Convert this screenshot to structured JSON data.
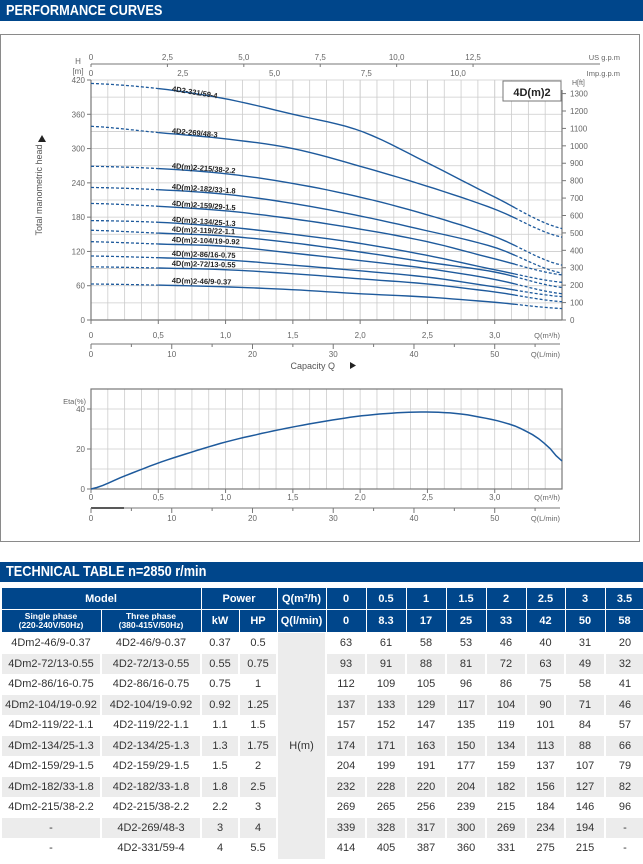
{
  "header": {
    "performance_title": "PERFORMANCE CURVES",
    "technical_title": "TECHNICAL TABLE n=2850 r/min"
  },
  "colors": {
    "brand": "#00468b",
    "curve": "#1e5a9c",
    "grid": "#cccccc"
  },
  "chart_data": [
    {
      "type": "line",
      "title": "4D(m)2",
      "xlabel": "Capacity Q",
      "ylabel": "Total manometric head",
      "y_unit_label": "H\n[m]",
      "y_unit_top": "H",
      "y_unit_bottom": "[m]",
      "y_right_label": "H[ft]",
      "xlim": [
        0,
        3.5
      ],
      "ylim": [
        0,
        420
      ],
      "grid": true,
      "x_axis_label_m3h": "Q(m³/h)",
      "x_axis_label_lmin": "Q(L/min)",
      "us_gpm_label": "US g.p.m",
      "imp_gpm_label": "Imp.g.p.m",
      "x_ticks_m3h": [
        "0",
        "0,5",
        "1,0",
        "1,5",
        "2,0",
        "2,5",
        "3,0"
      ],
      "x_ticks_lmin": [
        "0",
        "10",
        "20",
        "30",
        "40",
        "50"
      ],
      "us_gpm_ticks": [
        "0",
        "2,5",
        "5,0",
        "7,5",
        "10,0",
        "12,5"
      ],
      "imp_gpm_ticks": [
        "0",
        "2,5",
        "5,0",
        "7,5",
        "10,0"
      ],
      "y_ticks": [
        "0",
        "60",
        "120",
        "180",
        "240",
        "300",
        "360",
        "420"
      ],
      "y_right_ticks": [
        "0",
        "100",
        "200",
        "300",
        "400",
        "500",
        "600",
        "700",
        "800",
        "900",
        "1000",
        "1100",
        "1200",
        "1300"
      ],
      "x": [
        0,
        0.5,
        1,
        1.5,
        2,
        2.5,
        3,
        3.5
      ],
      "solid_range": [
        0.5,
        3.15
      ],
      "series": [
        {
          "name": "4D2-331/59-4",
          "values": [
            414,
            405,
            387,
            360,
            331,
            275,
            215,
            160
          ]
        },
        {
          "name": "4D2-269/48-3",
          "values": [
            339,
            328,
            317,
            300,
            269,
            234,
            194,
            145
          ]
        },
        {
          "name": "4D(m)2-215/38-2.2",
          "values": [
            269,
            265,
            256,
            239,
            215,
            184,
            146,
            96
          ]
        },
        {
          "name": "4D(m)2-182/33-1.8",
          "values": [
            232,
            228,
            220,
            204,
            182,
            156,
            127,
            82
          ]
        },
        {
          "name": "4D(m)2-159/29-1.5",
          "values": [
            204,
            199,
            191,
            177,
            159,
            137,
            107,
            79
          ]
        },
        {
          "name": "4D(m)2-134/25-1.3",
          "values": [
            174,
            171,
            163,
            150,
            134,
            113,
            88,
            66
          ]
        },
        {
          "name": "4D(m)2-119/22-1.1",
          "values": [
            157,
            152,
            147,
            135,
            119,
            101,
            84,
            57
          ]
        },
        {
          "name": "4D(m)2-104/19-0.92",
          "values": [
            137,
            133,
            129,
            117,
            104,
            90,
            71,
            46
          ]
        },
        {
          "name": "4D(m)2-86/16-0.75",
          "values": [
            112,
            109,
            105,
            96,
            86,
            75,
            58,
            41
          ]
        },
        {
          "name": "4D(m)2-72/13-0.55",
          "values": [
            93,
            91,
            88,
            81,
            72,
            63,
            49,
            32
          ]
        },
        {
          "name": "4D(m)2-46/9-0.37",
          "values": [
            63,
            61,
            58,
            53,
            46,
            40,
            31,
            20
          ]
        }
      ]
    },
    {
      "type": "line",
      "title": "",
      "ylabel": "Eta(%)",
      "xlim": [
        0,
        3.5
      ],
      "ylim": [
        0,
        50
      ],
      "grid": true,
      "x_axis_label_m3h": "Q(m³/h)",
      "x_axis_label_lmin": "Q(L/min)",
      "x_ticks_m3h": [
        "0",
        "0,5",
        "1,0",
        "1,5",
        "2,0",
        "2,5",
        "3,0"
      ],
      "x_ticks_lmin": [
        "0",
        "10",
        "20",
        "30",
        "40",
        "50"
      ],
      "y_ticks": [
        "0",
        "20",
        "40"
      ],
      "series": [
        {
          "name": "Eta",
          "x": [
            0,
            0.25,
            0.5,
            0.75,
            1.0,
            1.25,
            1.5,
            1.75,
            2.0,
            2.25,
            2.5,
            2.75,
            3.0,
            3.15,
            3.3,
            3.4,
            3.5
          ],
          "values": [
            0,
            6.5,
            13,
            18.5,
            23.5,
            27.5,
            31,
            34,
            36.5,
            38,
            38.5,
            37.5,
            34.5,
            31.5,
            26.5,
            21,
            14
          ]
        }
      ]
    }
  ],
  "table": {
    "header_row1": {
      "model": "Model",
      "power": "Power",
      "q_m3h": "Q(m³/h)",
      "flows_m3h": [
        "0",
        "0.5",
        "1",
        "1.5",
        "2",
        "2.5",
        "3",
        "3.5"
      ]
    },
    "header_row2": {
      "single_phase": "Single phase",
      "single_phase_spec": "(220-240V/50Hz)",
      "three_phase": "Three phase",
      "three_phase_spec": "(380-415V/50Hz)",
      "kw": "kW",
      "hp": "HP",
      "q_lmin": "Q(l/min)",
      "flows_lmin": [
        "0",
        "8.3",
        "17",
        "25",
        "33",
        "42",
        "50",
        "58"
      ]
    },
    "h_label": "H(m)",
    "rows": [
      {
        "single": "4Dm2-46/9-0.37",
        "three": "4D2-46/9-0.37",
        "kw": "0.37",
        "hp": "0.5",
        "h": [
          "63",
          "61",
          "58",
          "53",
          "46",
          "40",
          "31",
          "20"
        ]
      },
      {
        "single": "4Dm2-72/13-0.55",
        "three": "4D2-72/13-0.55",
        "kw": "0.55",
        "hp": "0.75",
        "h": [
          "93",
          "91",
          "88",
          "81",
          "72",
          "63",
          "49",
          "32"
        ]
      },
      {
        "single": "4Dm2-86/16-0.75",
        "three": "4D2-86/16-0.75",
        "kw": "0.75",
        "hp": "1",
        "h": [
          "112",
          "109",
          "105",
          "96",
          "86",
          "75",
          "58",
          "41"
        ]
      },
      {
        "single": "4Dm2-104/19-0.92",
        "three": "4D2-104/19-0.92",
        "kw": "0.92",
        "hp": "1.25",
        "h": [
          "137",
          "133",
          "129",
          "117",
          "104",
          "90",
          "71",
          "46"
        ]
      },
      {
        "single": "4Dm2-119/22-1.1",
        "three": "4D2-119/22-1.1",
        "kw": "1.1",
        "hp": "1.5",
        "h": [
          "157",
          "152",
          "147",
          "135",
          "119",
          "101",
          "84",
          "57"
        ]
      },
      {
        "single": "4Dm2-134/25-1.3",
        "three": "4D2-134/25-1.3",
        "kw": "1.3",
        "hp": "1.75",
        "h": [
          "174",
          "171",
          "163",
          "150",
          "134",
          "113",
          "88",
          "66"
        ]
      },
      {
        "single": "4Dm2-159/29-1.5",
        "three": "4D2-159/29-1.5",
        "kw": "1.5",
        "hp": "2",
        "h": [
          "204",
          "199",
          "191",
          "177",
          "159",
          "137",
          "107",
          "79"
        ]
      },
      {
        "single": "4Dm2-182/33-1.8",
        "three": "4D2-182/33-1.8",
        "kw": "1.8",
        "hp": "2.5",
        "h": [
          "232",
          "228",
          "220",
          "204",
          "182",
          "156",
          "127",
          "82"
        ]
      },
      {
        "single": "4Dm2-215/38-2.2",
        "three": "4D2-215/38-2.2",
        "kw": "2.2",
        "hp": "3",
        "h": [
          "269",
          "265",
          "256",
          "239",
          "215",
          "184",
          "146",
          "96"
        ]
      },
      {
        "single": "-",
        "three": "4D2-269/48-3",
        "kw": "3",
        "hp": "4",
        "h": [
          "339",
          "328",
          "317",
          "300",
          "269",
          "234",
          "194",
          "-"
        ]
      },
      {
        "single": "-",
        "three": "4D2-331/59-4",
        "kw": "4",
        "hp": "5.5",
        "h": [
          "414",
          "405",
          "387",
          "360",
          "331",
          "275",
          "215",
          "-"
        ]
      }
    ]
  }
}
